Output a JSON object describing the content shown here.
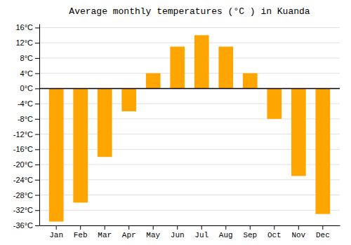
{
  "chart_data": {
    "type": "bar",
    "title": "Average monthly temperatures (°C ) in Kuanda",
    "categories": [
      "Jan",
      "Feb",
      "Mar",
      "Apr",
      "May",
      "Jun",
      "Jul",
      "Aug",
      "Sep",
      "Oct",
      "Nov",
      "Dec"
    ],
    "values": [
      -35,
      -30,
      -18,
      -6,
      4,
      11,
      14,
      11,
      4,
      -8,
      -23,
      -33
    ],
    "color": "#FFA500",
    "ylim": [
      -36,
      17
    ],
    "yticks": [
      {
        "value": -36,
        "label": "-36°C"
      },
      {
        "value": -32,
        "label": "-32°C"
      },
      {
        "value": -28,
        "label": "-28°C"
      },
      {
        "value": -24,
        "label": "-24°C"
      },
      {
        "value": -20,
        "label": "-20°C"
      },
      {
        "value": -16,
        "label": "-16°C"
      },
      {
        "value": -12,
        "label": "-12°C"
      },
      {
        "value": -8,
        "label": "-8°C"
      },
      {
        "value": -4,
        "label": "-4°C"
      },
      {
        "value": 0,
        "label": "0°C"
      },
      {
        "value": 4,
        "label": "4°C"
      },
      {
        "value": 8,
        "label": "8°C"
      },
      {
        "value": 12,
        "label": "12°C"
      },
      {
        "value": 16,
        "label": "16°C"
      }
    ],
    "grid": true
  }
}
